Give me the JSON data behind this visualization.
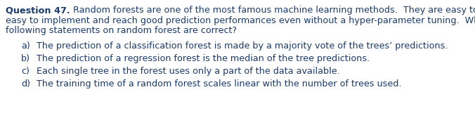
{
  "background_color": "#ffffff",
  "question_bold": "Question 47.",
  "question_rest_line1": " Random forests are one of the most famous machine learning methods.  They are easy to understand,",
  "question_line2": "easy to implement and reach good prediction performances even without a hyper-parameter tuning.  Which of the",
  "question_line3": "following statements on random forest are correct?",
  "options": [
    {
      "label": "a)",
      "text": "The prediction of a classification forest is made by a majority vote of the trees’ predictions."
    },
    {
      "label": "b)",
      "text": "The prediction of a regression forest is the median of the tree predictions."
    },
    {
      "label": "c)",
      "text": "Each single tree in the forest uses only a part of the data available."
    },
    {
      "label": "d)",
      "text": "The training time of a random forest scales linear with the number of trees used."
    }
  ],
  "text_color": "#1a3a6b",
  "font_size": 9.2,
  "fig_width": 6.76,
  "fig_height": 1.68,
  "dpi": 100
}
